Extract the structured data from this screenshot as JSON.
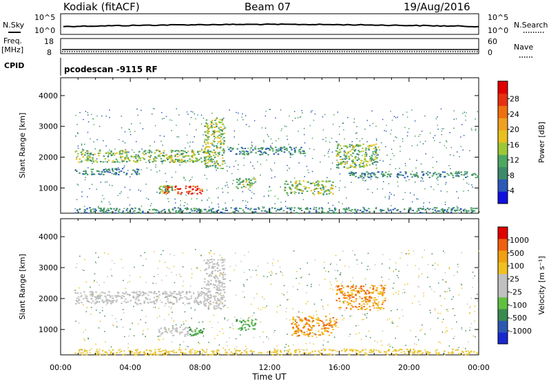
{
  "header": {
    "station": "Kodiak (fitACF)",
    "beam": "Beam 07",
    "date": "19/Aug/2016"
  },
  "strips": {
    "nsky_label": "N.Sky",
    "nsky_tick_hi": "10^5",
    "nsky_tick_lo": "10^0",
    "nsearch_label": "N.Search",
    "nsearch_tick_hi": "10^5",
    "nsearch_tick_lo": "10^0",
    "freq_label": "Freq.",
    "freq_unit": "[MHz]",
    "freq_tick_hi": "18",
    "freq_tick_lo": "8",
    "nave_label": "Nave",
    "nave_tick_hi": "60",
    "nave_tick_lo": "0",
    "cpid_label": "CPID",
    "cpid_value": "pcodescan -9115 RF"
  },
  "x_axis": {
    "title": "Time UT",
    "ticks": [
      "00:00",
      "04:00",
      "08:00",
      "12:00",
      "16:00",
      "20:00",
      "00:00"
    ],
    "range_hours": [
      0,
      24
    ]
  },
  "chart_data": [
    {
      "type": "heatmap",
      "quantity": "Power",
      "xlabel": "Time UT",
      "ylabel": "Slant Range [km]",
      "ylim": [
        180,
        4580
      ],
      "yticks": [
        1000,
        2000,
        3000,
        4000
      ],
      "colorbar_label": "Power [dB]",
      "colorbar_ticks": [
        "28",
        "24",
        "20",
        "16",
        "12",
        "8",
        "4"
      ],
      "colorbar_colors": [
        "#1010e0",
        "#2c58b8",
        "#3d8a6a",
        "#4ca860",
        "#9cc838",
        "#e8c020",
        "#f0a020",
        "#f07010",
        "#e83010",
        "#e00000"
      ],
      "regions": [
        {
          "t": [
            5.8,
            8.1
          ],
          "r": [
            820,
            1080
          ],
          "level": "high"
        },
        {
          "t": [
            5.6,
            6.4
          ],
          "r": [
            850,
            1100
          ],
          "level": "mid"
        },
        {
          "t": [
            0.8,
            8.6
          ],
          "r": [
            1850,
            2250
          ],
          "level": "mid"
        },
        {
          "t": [
            0.8,
            4.5
          ],
          "r": [
            1450,
            1650
          ],
          "level": "low"
        },
        {
          "t": [
            8.2,
            9.4
          ],
          "r": [
            1650,
            3300
          ],
          "level": "mid"
        },
        {
          "t": [
            9.5,
            14.0
          ],
          "r": [
            2100,
            2350
          ],
          "level": "low"
        },
        {
          "t": [
            10.0,
            11.2
          ],
          "r": [
            1000,
            1350
          ],
          "level": "mid"
        },
        {
          "t": [
            12.8,
            15.6
          ],
          "r": [
            800,
            1250
          ],
          "level": "mid"
        },
        {
          "t": [
            15.8,
            18.2
          ],
          "r": [
            1650,
            2450
          ],
          "level": "mid"
        },
        {
          "t": [
            16.5,
            24.0
          ],
          "r": [
            1350,
            1550
          ],
          "level": "low"
        },
        {
          "t": [
            0.8,
            24.0
          ],
          "r": [
            200,
            380
          ],
          "level": "low"
        }
      ]
    },
    {
      "type": "heatmap",
      "quantity": "Velocity",
      "xlabel": "Time UT",
      "ylabel": "Slant Range [km]",
      "ylim": [
        180,
        4580
      ],
      "yticks": [
        1000,
        2000,
        3000,
        4000
      ],
      "colorbar_label": "Velocity [m s⁻¹]",
      "colorbar_ticks": [
        "1000",
        "500",
        "100",
        "25",
        "-25",
        "-100",
        "-500",
        "-1000"
      ],
      "colorbar_colors": [
        "#1828d0",
        "#2c58b0",
        "#3a8a50",
        "#60c040",
        "#c0c0c0",
        "#c0c0c0",
        "#f0c020",
        "#f0a010",
        "#f06010",
        "#e00000"
      ],
      "regions": [
        {
          "t": [
            5.6,
            7.3
          ],
          "r": [
            800,
            1100
          ],
          "level": "gray"
        },
        {
          "t": [
            7.3,
            8.2
          ],
          "r": [
            820,
            1100
          ],
          "level": "green"
        },
        {
          "t": [
            0.8,
            8.6
          ],
          "r": [
            1850,
            2250
          ],
          "level": "gray"
        },
        {
          "t": [
            8.2,
            9.4
          ],
          "r": [
            1650,
            3300
          ],
          "level": "gray"
        },
        {
          "t": [
            10.0,
            11.2
          ],
          "r": [
            1000,
            1350
          ],
          "level": "green"
        },
        {
          "t": [
            13.2,
            15.8
          ],
          "r": [
            800,
            1450
          ],
          "level": "orange"
        },
        {
          "t": [
            15.8,
            18.6
          ],
          "r": [
            1650,
            2450
          ],
          "level": "orange"
        },
        {
          "t": [
            0.8,
            24.0
          ],
          "r": [
            200,
            380
          ],
          "level": "yellow"
        }
      ]
    }
  ]
}
